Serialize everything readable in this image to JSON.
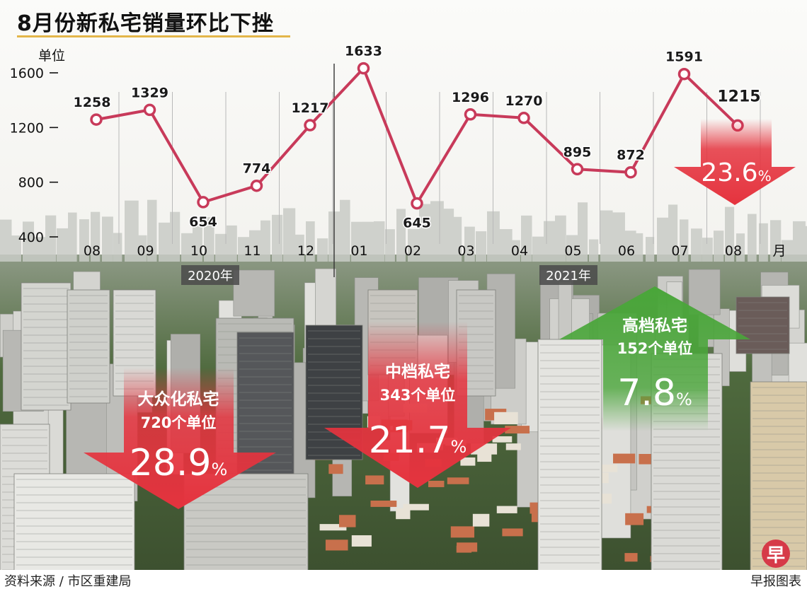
{
  "title": "8月份新私宅销量环比下挫",
  "source": "资料来源 / 市区重建局",
  "credit": "早报图表",
  "logo_text": "早",
  "chart_data": {
    "type": "line",
    "title": "8月份新私宅销量环比下挫",
    "ylabel": "单位",
    "xlabel": "月",
    "ylim": [
      400,
      1600
    ],
    "yticks": [
      400,
      800,
      1200,
      1600
    ],
    "categories": [
      "08",
      "09",
      "10",
      "11",
      "12",
      "01",
      "02",
      "03",
      "04",
      "05",
      "06",
      "07",
      "08"
    ],
    "year_labels": [
      "2020年",
      "2021年"
    ],
    "series": [
      {
        "name": "",
        "values": [
          1258,
          1329,
          654,
          774,
          1217,
          1633,
          645,
          1296,
          1270,
          895,
          872,
          1591,
          1215
        ],
        "color": "#c83a5a"
      }
    ],
    "grid": false,
    "highlight": {
      "value": "23.6%",
      "direction": "down",
      "color": "#e5333e"
    }
  },
  "segments": [
    {
      "title": "大众化私宅",
      "units": "720个单位",
      "pct": "28.9",
      "pct_sign": "%",
      "direction": "down",
      "color": "#e5333e"
    },
    {
      "title": "中档私宅",
      "units": "343个单位",
      "pct": "21.7",
      "pct_sign": "%",
      "direction": "down",
      "color": "#e5333e"
    },
    {
      "title": "高档私宅",
      "units": "152个单位",
      "pct": "7.8",
      "pct_sign": "%",
      "direction": "up",
      "color": "#4aa63a"
    }
  ]
}
